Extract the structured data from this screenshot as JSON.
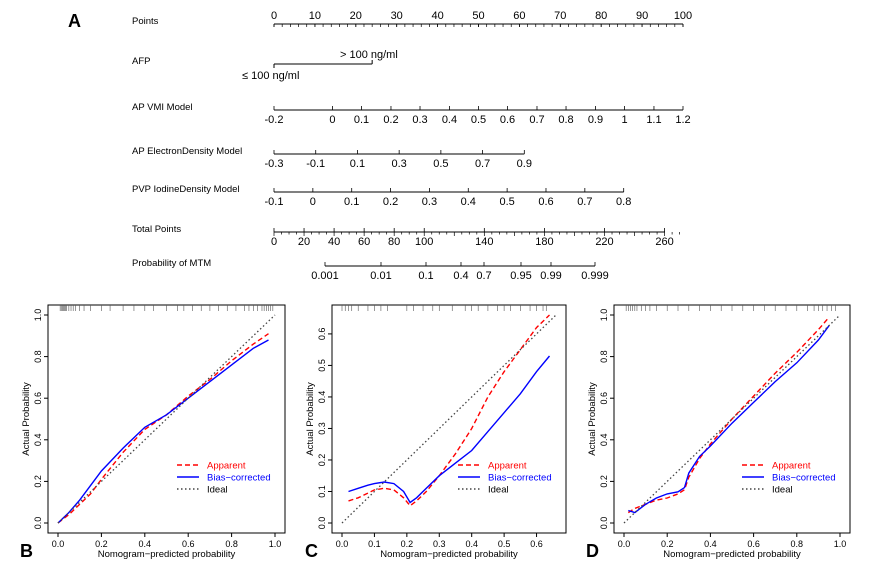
{
  "panel_labels": {
    "a": "A",
    "b": "B",
    "c": "C",
    "d": "D"
  },
  "nomogram": {
    "rows": [
      {
        "name": "Points",
        "ticks": [
          "0",
          "10",
          "20",
          "30",
          "40",
          "50",
          "60",
          "70",
          "80",
          "90",
          "100"
        ],
        "values": [
          0,
          10,
          20,
          30,
          40,
          50,
          60,
          70,
          80,
          90,
          100
        ]
      },
      {
        "name": "AFP",
        "ticks": [
          "≤ 100 ng/ml",
          "> 100 ng/ml"
        ],
        "values": [
          0,
          24
        ]
      },
      {
        "name": "AP VMI Model",
        "ticks": [
          "-0.2",
          "0",
          "0.1",
          "0.2",
          "0.3",
          "0.4",
          "0.5",
          "0.6",
          "0.7",
          "0.8",
          "0.9",
          "1",
          "1.1",
          "1.2"
        ],
        "values": [
          0,
          14.3,
          21.4,
          28.6,
          35.7,
          42.9,
          50,
          57.1,
          64.3,
          71.4,
          78.6,
          85.7,
          92.9,
          100
        ]
      },
      {
        "name": "AP ElectronDensity Model",
        "ticks": [
          "-0.3",
          "-0.1",
          "0.1",
          "0.3",
          "0.5",
          "0.7",
          "0.9"
        ],
        "values": [
          0,
          10.2,
          20.4,
          30.6,
          40.8,
          51,
          61.2
        ]
      },
      {
        "name": "PVP IodineDensity Model",
        "ticks": [
          "-0.1",
          "0",
          "0.1",
          "0.2",
          "0.3",
          "0.4",
          "0.5",
          "0.6",
          "0.7",
          "0.8"
        ],
        "values": [
          0,
          9.5,
          19,
          28.5,
          38,
          47.5,
          57,
          66.5,
          76,
          85.5
        ]
      },
      {
        "name": "Total Points",
        "ticks": [
          "0",
          "20",
          "40",
          "60",
          "80",
          "100",
          "140",
          "180",
          "220",
          "260"
        ],
        "values": [
          0,
          20,
          40,
          60,
          80,
          100,
          140,
          180,
          220,
          260
        ]
      },
      {
        "name": "Probability of MTM",
        "ticks": [
          "0.001",
          "0.01",
          "0.1",
          "0.4",
          "0.7",
          "0.95",
          "0.99",
          "0.999"
        ],
        "values": [
          0.001,
          0.01,
          0.1,
          0.4,
          0.7,
          0.95,
          0.99,
          0.999
        ]
      }
    ]
  },
  "chart_data": [
    {
      "type": "line",
      "panel": "B",
      "xlabel": "Nomogram−predicted probability",
      "ylabel": "Actual Probability",
      "xlim": [
        0,
        1
      ],
      "ylim": [
        0,
        1
      ],
      "xticks": [
        "0.0",
        "0.2",
        "0.4",
        "0.6",
        "0.8",
        "1.0"
      ],
      "yticks": [
        "0.0",
        "0.2",
        "0.4",
        "0.6",
        "0.8",
        "1.0"
      ],
      "legend": {
        "placement": "bottom-right",
        "entries": [
          "Apparent",
          "Bias−corrected",
          "Ideal"
        ]
      },
      "series": [
        {
          "name": "Apparent",
          "color": "#ff0000",
          "style": "dashed",
          "x": [
            0.0,
            0.05,
            0.1,
            0.15,
            0.2,
            0.3,
            0.4,
            0.5,
            0.6,
            0.7,
            0.8,
            0.9,
            0.97
          ],
          "y": [
            0.0,
            0.04,
            0.09,
            0.14,
            0.21,
            0.34,
            0.45,
            0.52,
            0.61,
            0.69,
            0.78,
            0.86,
            0.91
          ]
        },
        {
          "name": "Bias−corrected",
          "color": "#0000ff",
          "style": "solid",
          "x": [
            0.0,
            0.05,
            0.1,
            0.15,
            0.2,
            0.3,
            0.4,
            0.5,
            0.6,
            0.7,
            0.8,
            0.9,
            0.97
          ],
          "y": [
            0.0,
            0.05,
            0.11,
            0.18,
            0.25,
            0.36,
            0.46,
            0.52,
            0.6,
            0.68,
            0.76,
            0.84,
            0.88
          ]
        },
        {
          "name": "Ideal",
          "color": "#444444",
          "style": "dotted",
          "x": [
            0,
            1
          ],
          "y": [
            0,
            1
          ]
        }
      ],
      "rug": [
        0.01,
        0.015,
        0.02,
        0.025,
        0.03,
        0.035,
        0.04,
        0.05,
        0.06,
        0.07,
        0.08,
        0.1,
        0.12,
        0.15,
        0.2,
        0.24,
        0.3,
        0.35,
        0.4,
        0.44,
        0.5,
        0.55,
        0.58,
        0.62,
        0.66,
        0.7,
        0.74,
        0.78,
        0.82,
        0.86,
        0.88,
        0.9,
        0.92,
        0.94,
        0.95,
        0.96,
        0.97,
        0.98,
        0.99
      ]
    },
    {
      "type": "line",
      "panel": "C",
      "xlabel": "Nomogram−predicted probability",
      "ylabel": "Actual Probability",
      "xlim": [
        0,
        0.66
      ],
      "ylim": [
        0,
        0.66
      ],
      "xticks": [
        "0.0",
        "0.1",
        "0.2",
        "0.3",
        "0.4",
        "0.5",
        "0.6"
      ],
      "yticks": [
        "0.0",
        "0.1",
        "0.2",
        "0.3",
        "0.4",
        "0.5",
        "0.6"
      ],
      "legend": {
        "placement": "bottom-right",
        "entries": [
          "Apparent",
          "Bias−corrected",
          "Ideal"
        ]
      },
      "series": [
        {
          "name": "Apparent",
          "color": "#ff0000",
          "style": "dashed",
          "x": [
            0.02,
            0.05,
            0.08,
            0.1,
            0.13,
            0.16,
            0.19,
            0.21,
            0.23,
            0.26,
            0.3,
            0.35,
            0.4,
            0.45,
            0.5,
            0.55,
            0.6,
            0.64
          ],
          "y": [
            0.07,
            0.08,
            0.095,
            0.105,
            0.11,
            0.105,
            0.08,
            0.055,
            0.07,
            0.1,
            0.15,
            0.22,
            0.3,
            0.4,
            0.48,
            0.55,
            0.62,
            0.66
          ]
        },
        {
          "name": "Bias−corrected",
          "color": "#0000ff",
          "style": "solid",
          "x": [
            0.02,
            0.05,
            0.08,
            0.1,
            0.13,
            0.16,
            0.19,
            0.21,
            0.23,
            0.26,
            0.3,
            0.35,
            0.4,
            0.45,
            0.5,
            0.55,
            0.6,
            0.64
          ],
          "y": [
            0.1,
            0.11,
            0.12,
            0.125,
            0.13,
            0.125,
            0.1,
            0.065,
            0.08,
            0.11,
            0.15,
            0.19,
            0.23,
            0.29,
            0.35,
            0.41,
            0.48,
            0.53
          ]
        },
        {
          "name": "Ideal",
          "color": "#444444",
          "style": "dotted",
          "x": [
            0,
            0.66
          ],
          "y": [
            0,
            0.66
          ]
        }
      ],
      "rug": [
        0.0,
        0.01,
        0.02,
        0.03,
        0.05,
        0.08,
        0.1,
        0.12,
        0.14,
        0.2,
        0.22,
        0.25,
        0.28,
        0.3,
        0.34,
        0.38,
        0.4,
        0.42,
        0.45,
        0.48,
        0.5,
        0.52,
        0.55,
        0.58,
        0.6,
        0.62,
        0.63
      ]
    },
    {
      "type": "line",
      "panel": "D",
      "xlabel": "Nomogram−predicted probability",
      "ylabel": "Actual Probability",
      "xlim": [
        0,
        1
      ],
      "ylim": [
        0,
        1
      ],
      "xticks": [
        "0.0",
        "0.2",
        "0.4",
        "0.6",
        "0.8",
        "1.0"
      ],
      "yticks": [
        "0.0",
        "0.2",
        "0.4",
        "0.6",
        "0.8",
        "1.0"
      ],
      "legend": {
        "placement": "bottom-right",
        "entries": [
          "Apparent",
          "Bias−corrected",
          "Ideal"
        ]
      },
      "series": [
        {
          "name": "Apparent",
          "color": "#ff0000",
          "style": "dashed",
          "x": [
            0.02,
            0.05,
            0.1,
            0.15,
            0.2,
            0.25,
            0.28,
            0.3,
            0.35,
            0.4,
            0.5,
            0.6,
            0.7,
            0.8,
            0.9,
            0.95
          ],
          "y": [
            0.05,
            0.07,
            0.09,
            0.11,
            0.12,
            0.14,
            0.16,
            0.22,
            0.31,
            0.38,
            0.5,
            0.61,
            0.72,
            0.82,
            0.93,
            0.99
          ]
        },
        {
          "name": "Bias−corrected",
          "color": "#0000ff",
          "style": "solid",
          "x": [
            0.02,
            0.05,
            0.1,
            0.15,
            0.2,
            0.25,
            0.28,
            0.3,
            0.35,
            0.4,
            0.5,
            0.6,
            0.7,
            0.8,
            0.9,
            0.95
          ],
          "y": [
            0.06,
            0.05,
            0.09,
            0.12,
            0.14,
            0.15,
            0.17,
            0.24,
            0.32,
            0.37,
            0.48,
            0.58,
            0.68,
            0.77,
            0.88,
            0.95
          ]
        },
        {
          "name": "Ideal",
          "color": "#444444",
          "style": "dotted",
          "x": [
            0,
            1
          ],
          "y": [
            0,
            1
          ]
        }
      ],
      "rug": [
        0.01,
        0.02,
        0.03,
        0.04,
        0.05,
        0.06,
        0.08,
        0.1,
        0.12,
        0.15,
        0.2,
        0.25,
        0.3,
        0.35,
        0.4,
        0.45,
        0.5,
        0.55,
        0.6,
        0.65,
        0.7,
        0.75,
        0.8,
        0.85,
        0.88,
        0.9,
        0.92,
        0.94,
        0.96,
        0.98
      ]
    }
  ]
}
